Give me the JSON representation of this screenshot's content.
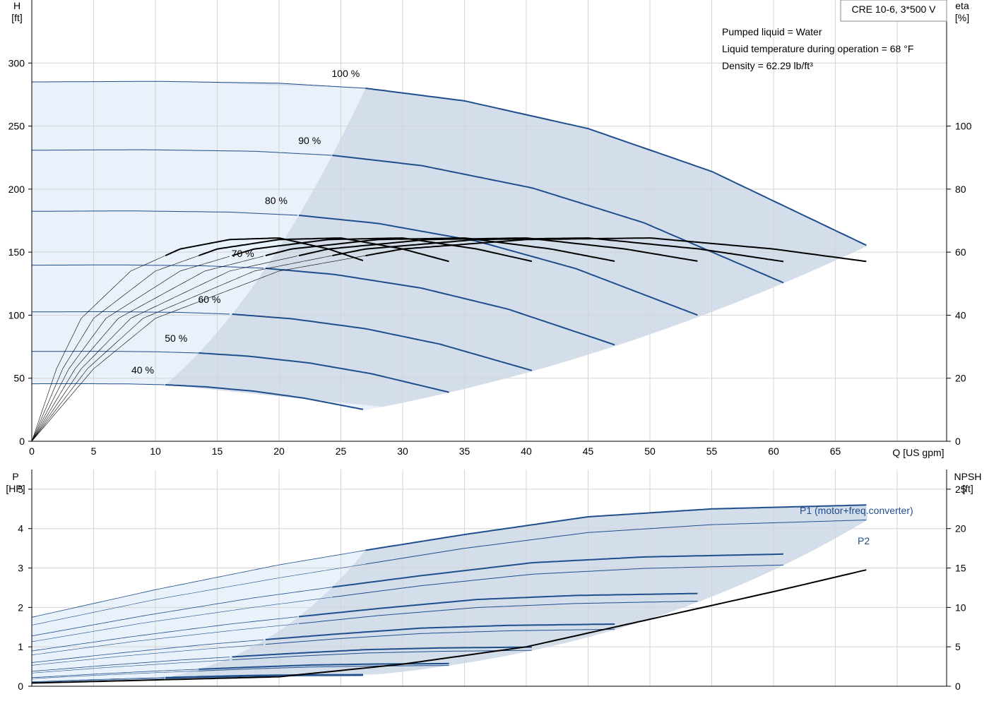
{
  "chart_data": [
    {
      "type": "line",
      "title": "",
      "box_label": "CRE 10-6, 3*500 V",
      "info": [
        "Pumped liquid = Water",
        "Liquid temperature during operation = 68 °F",
        "Density = 62.29 lb/ft³"
      ],
      "xlabel": "Q [US gpm]",
      "xlim": [
        0,
        74
      ],
      "xticks": [
        0,
        5,
        10,
        15,
        20,
        25,
        30,
        35,
        40,
        45,
        50,
        55,
        60,
        65
      ],
      "y_left": {
        "label_top": "H",
        "label_unit": "[ft]",
        "ylim": [
          0,
          350
        ],
        "ticks": [
          0,
          50,
          100,
          150,
          200,
          250,
          300
        ]
      },
      "y_right": {
        "label_top": "eta",
        "label_unit": "[%]",
        "ylim": [
          0,
          140
        ],
        "ticks": [
          0,
          20,
          40,
          60,
          80,
          100
        ]
      },
      "colors": {
        "curve": "#1f4e8c",
        "region": "#d3deea",
        "region_light": "#e9f1fa",
        "eta": "#000000"
      },
      "speed_curves": [
        {
          "name": "100 %",
          "k": 1.0
        },
        {
          "name": "90 %",
          "k": 0.9
        },
        {
          "name": "80 %",
          "k": 0.8
        },
        {
          "name": "70 %",
          "k": 0.7
        },
        {
          "name": "60 %",
          "k": 0.6
        },
        {
          "name": "50 %",
          "k": 0.5
        },
        {
          "name": "40 %",
          "k": 0.4
        }
      ],
      "base_head_curve": {
        "q": [
          0,
          10,
          20,
          27,
          35,
          45,
          55,
          67.6
        ],
        "h": [
          285,
          285.5,
          284,
          280,
          270,
          248,
          214,
          155
        ]
      },
      "base_efficiency_curve": {
        "q": [
          0,
          5,
          10,
          20,
          30,
          40,
          50,
          60,
          67.6
        ],
        "eta": [
          0,
          23,
          39,
          54,
          61,
          64,
          64.5,
          61,
          57
        ]
      }
    },
    {
      "type": "line",
      "title": "",
      "xlim": [
        0,
        74
      ],
      "xticks": [
        0,
        5,
        10,
        15,
        20,
        25,
        30,
        35,
        40,
        45,
        50,
        55,
        60,
        65
      ],
      "y_left": {
        "label_top": "P",
        "label_unit": "[HP]",
        "ylim": [
          0,
          5.5
        ],
        "ticks": [
          0,
          1,
          2,
          3,
          4,
          5
        ]
      },
      "y_right": {
        "label_top": "NPSH",
        "label_unit": "[ft]",
        "ylim": [
          0,
          27.5
        ],
        "ticks": [
          0,
          5,
          10,
          15,
          20,
          25
        ]
      },
      "series_labels": [
        "P1 (motor+freq.converter)",
        "P2"
      ],
      "base_p1_curve": {
        "q": [
          0,
          10,
          20,
          27,
          35,
          45,
          55,
          67.6
        ],
        "p": [
          1.75,
          2.45,
          3.08,
          3.45,
          3.85,
          4.3,
          4.5,
          4.6
        ]
      },
      "base_p2_curve": {
        "q": [
          0,
          10,
          20,
          27,
          35,
          45,
          55,
          67.6
        ],
        "p": [
          1.55,
          2.2,
          2.75,
          3.1,
          3.5,
          3.9,
          4.1,
          4.22
        ]
      },
      "npsh_curve": {
        "q": [
          0,
          20,
          30,
          40,
          50,
          60,
          67.6
        ],
        "npsh": [
          0.4,
          1.2,
          2.8,
          5.0,
          8.5,
          12.0,
          14.8
        ]
      }
    }
  ]
}
